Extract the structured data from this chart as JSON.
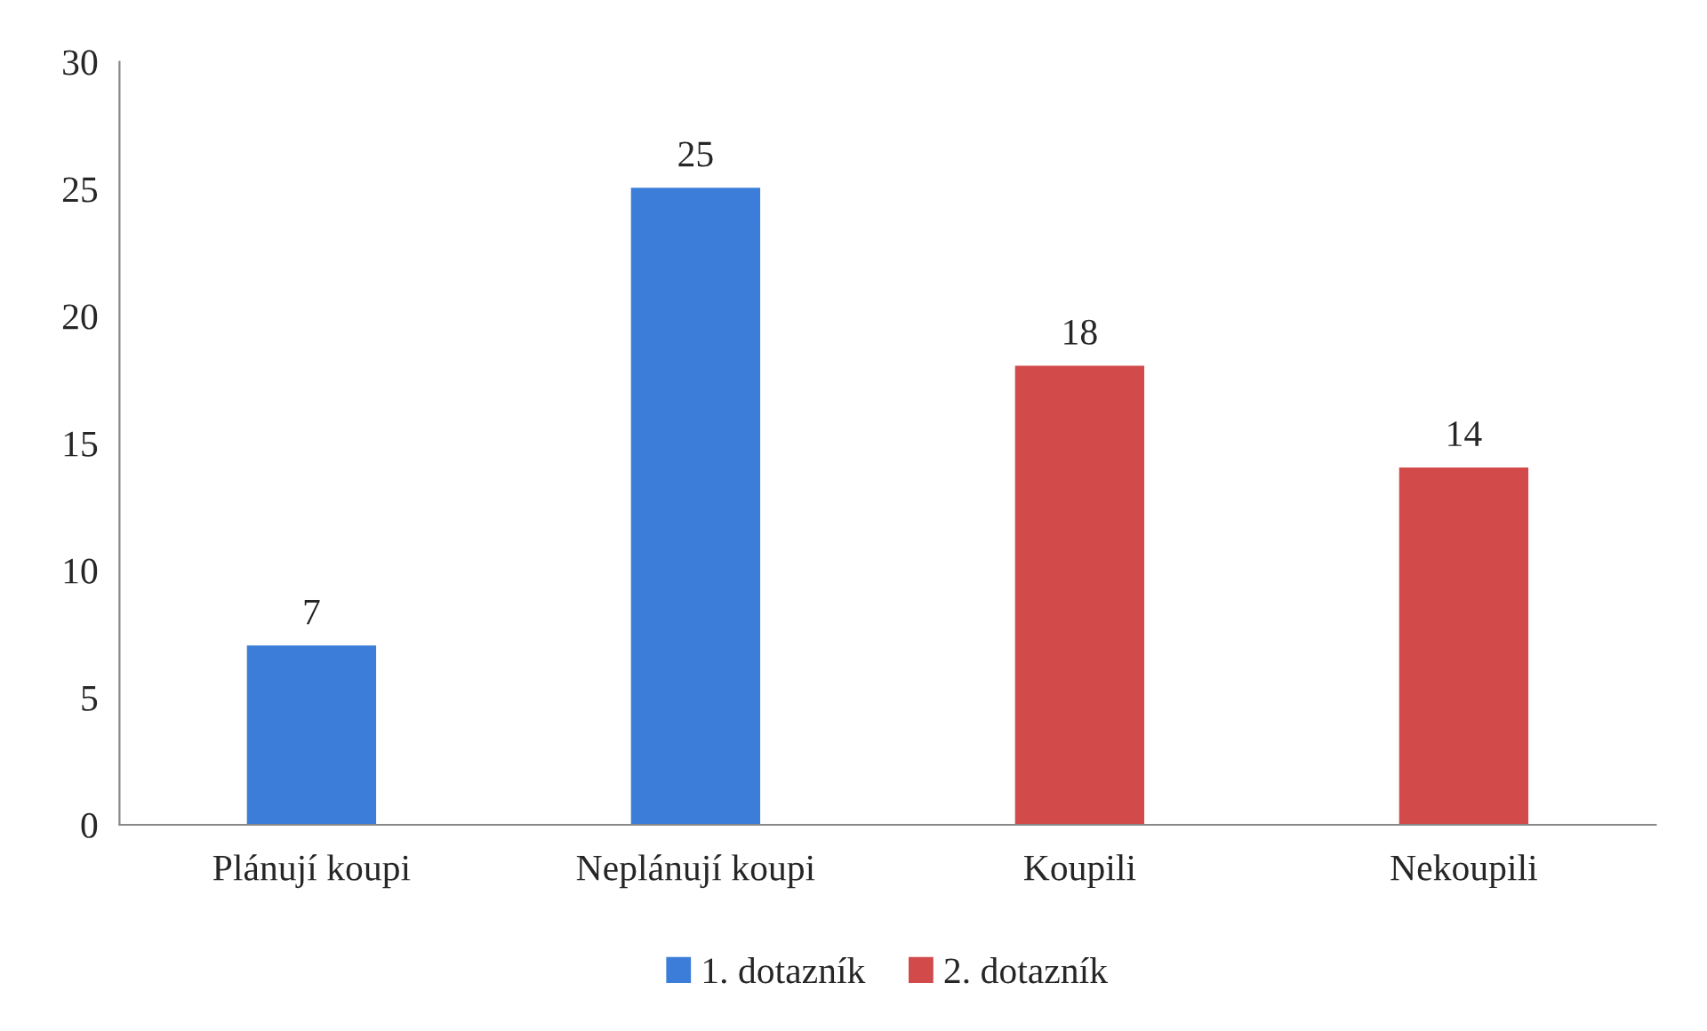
{
  "chart_data": {
    "type": "bar",
    "categories": [
      "Plánují koupi",
      "Neplánují koupi",
      "Koupili",
      "Nekoupili"
    ],
    "series": [
      {
        "name": "1. dotazník",
        "color": "#3b7dd8",
        "values": [
          7,
          25,
          null,
          null
        ]
      },
      {
        "name": "2. dotazník",
        "color": "#d24a4a",
        "values": [
          null,
          null,
          18,
          14
        ]
      }
    ],
    "ylim": [
      0,
      30
    ],
    "yticks": [
      0,
      5,
      10,
      15,
      20,
      25,
      30
    ],
    "data_labels": true,
    "grid": false,
    "legend": "bottom"
  }
}
